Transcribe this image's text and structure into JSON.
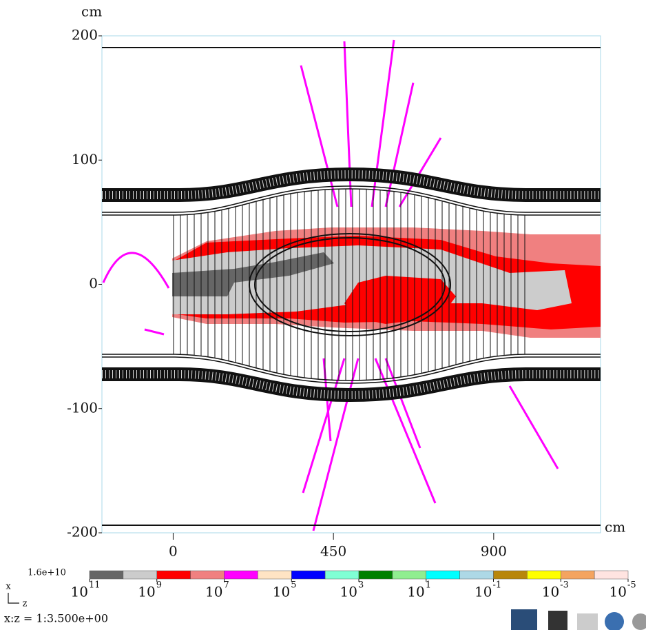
{
  "chart_data": {
    "type": "heatmap",
    "y_label": "cm",
    "x_label": "cm",
    "xlim": [
      -200,
      1200
    ],
    "ylim": [
      -200,
      200
    ],
    "xticks": [
      0,
      450,
      900
    ],
    "yticks": [
      -200,
      -100,
      0,
      100,
      200
    ],
    "colorbar": {
      "max_label": "1.6e+10",
      "tick_base": "10",
      "tick_exponents": [
        11,
        9,
        7,
        5,
        3,
        1,
        -1,
        -3,
        -5
      ],
      "colors": [
        "#666666",
        "#cccccc",
        "#ff0000",
        "#f08080",
        "#ff00ff",
        "#ffe4c4",
        "#0000ff",
        "#7fffd4",
        "#008000",
        "#90ee90",
        "#00ffff",
        "#add8e6",
        "#b8860b",
        "#ffff00",
        "#f4a460",
        "#ffe4e1"
      ]
    },
    "axis_glyph": {
      "vertical": "x",
      "horizontal": "z"
    },
    "scale_note": "x:z = 1:3.500e+00"
  }
}
